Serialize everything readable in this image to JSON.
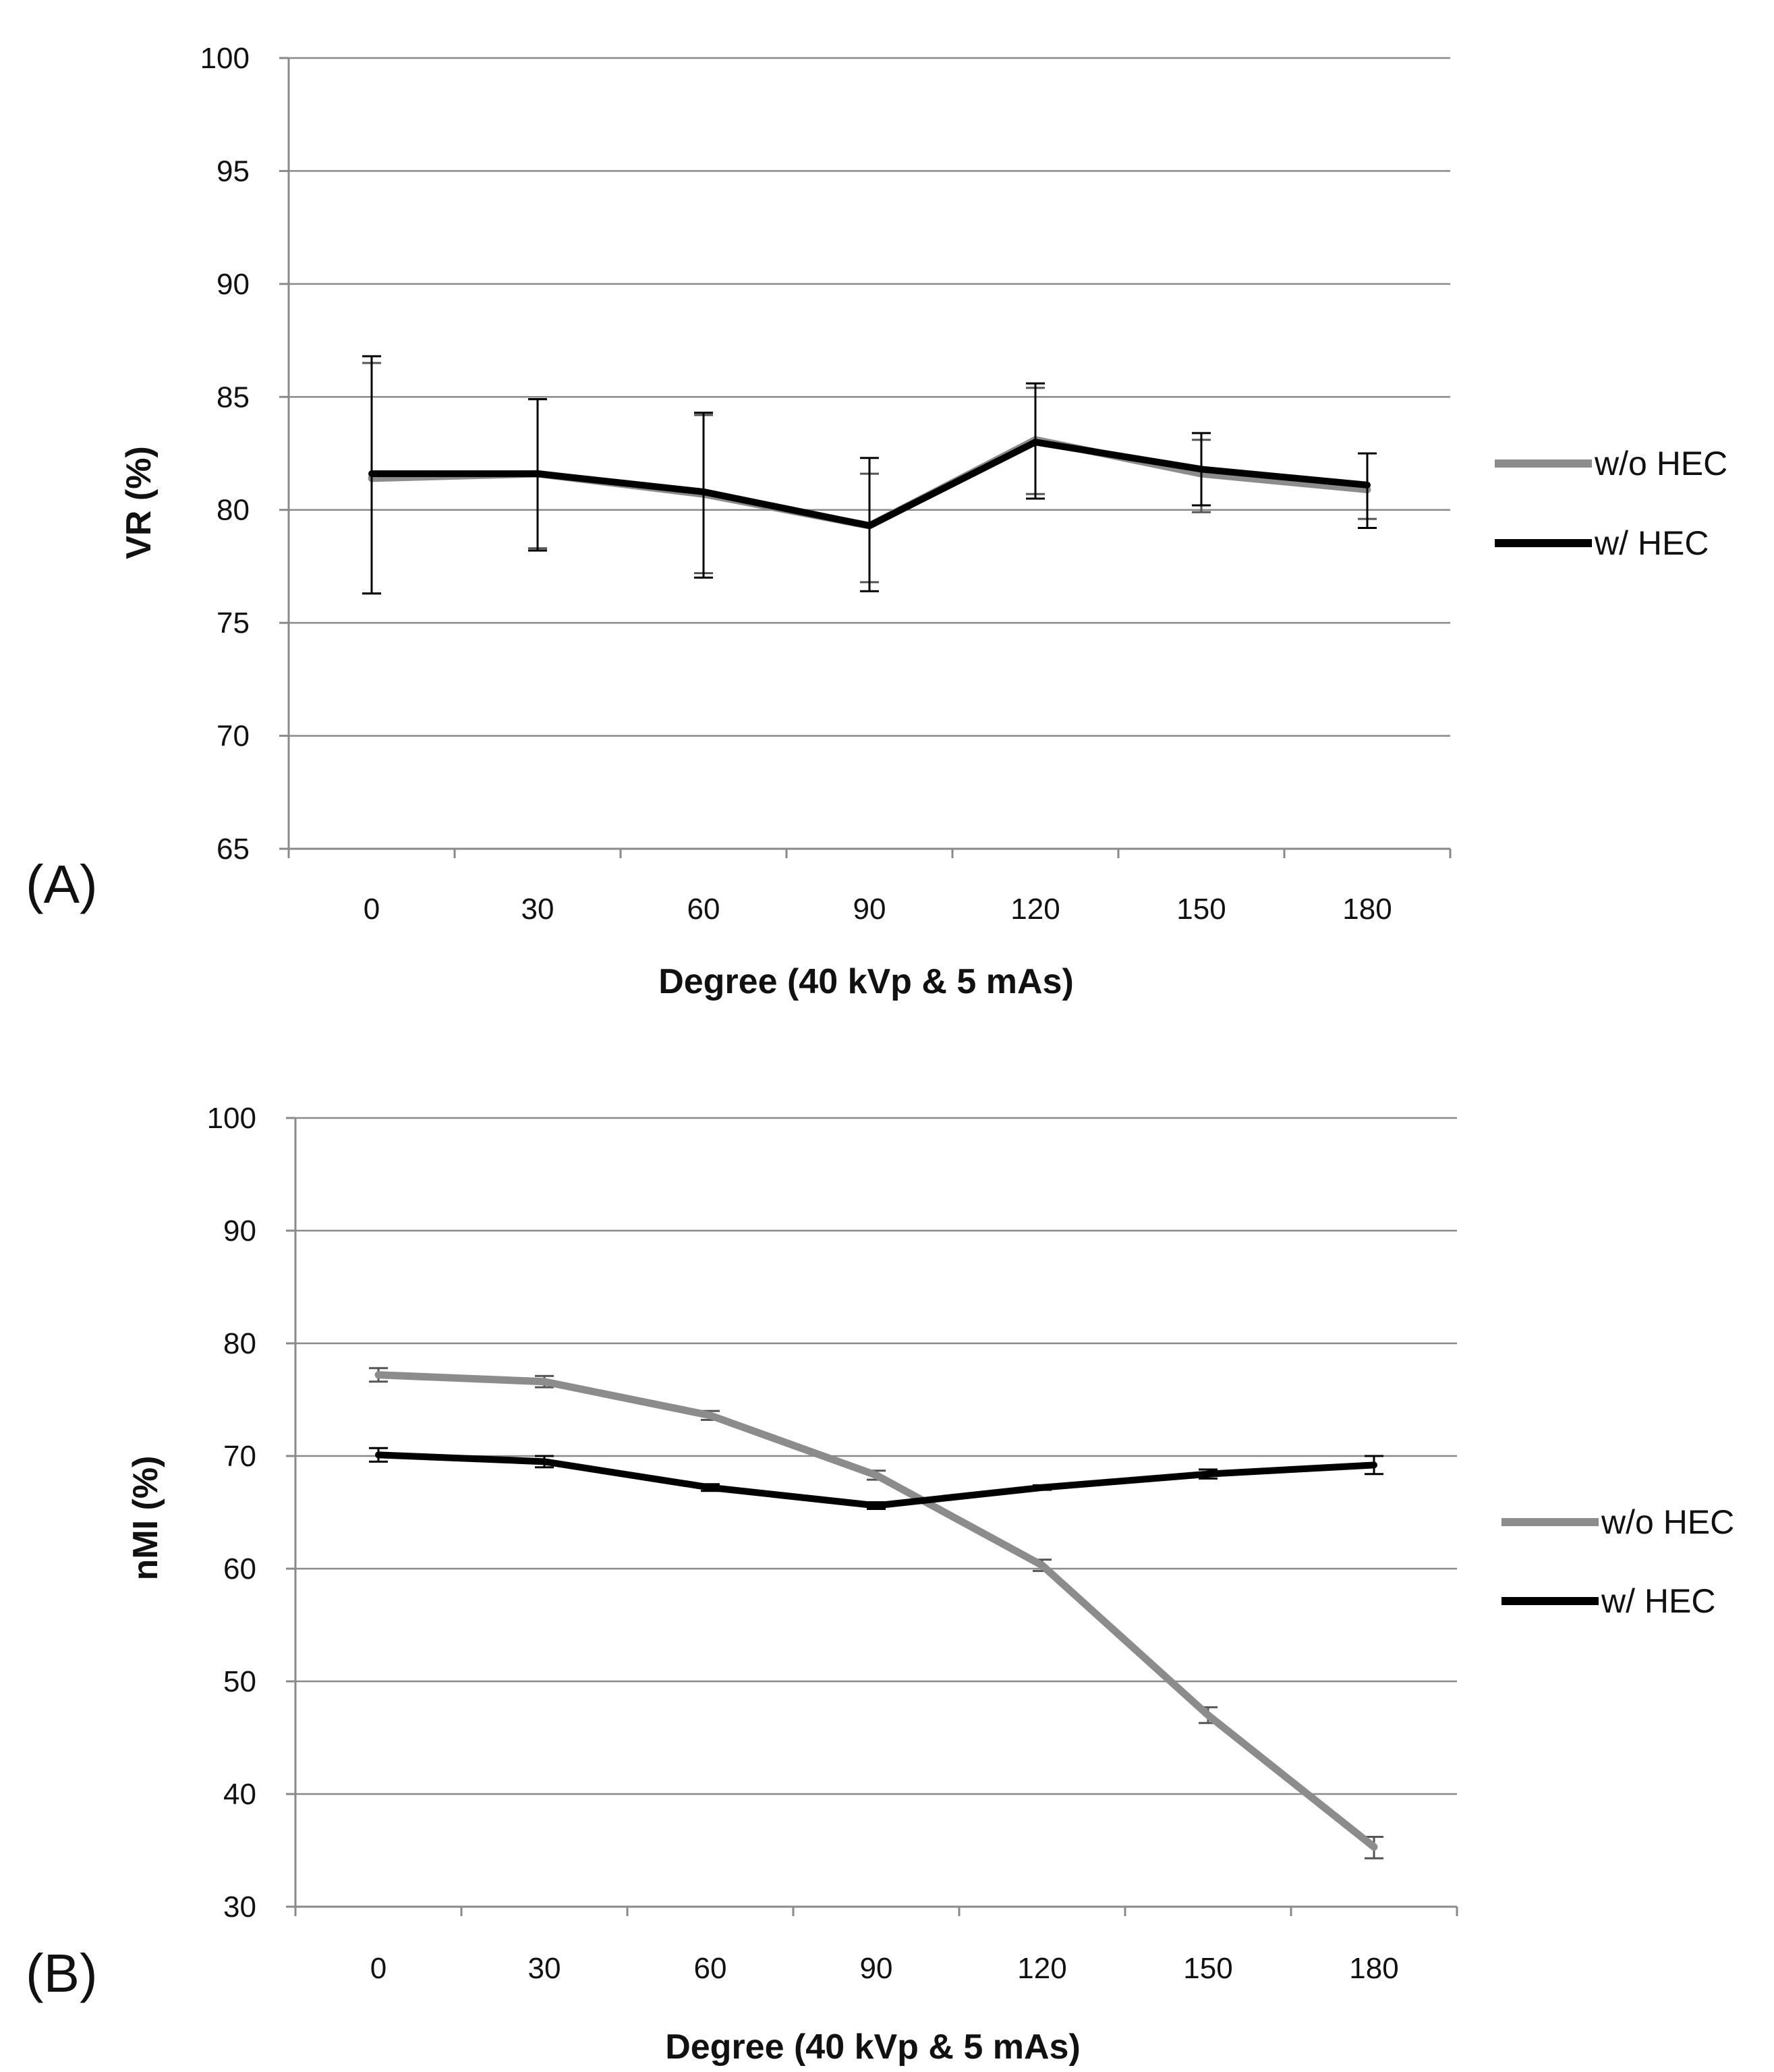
{
  "chart_data": [
    {
      "panel_label": "(A)",
      "type": "line",
      "title": "",
      "xlabel": "Degree (40 kVp & 5 mAs)",
      "ylabel": "VR (%)",
      "categories": [
        "0",
        "30",
        "60",
        "90",
        "120",
        "150",
        "180"
      ],
      "ylim": [
        65,
        100
      ],
      "yticks": [
        "65",
        "70",
        "75",
        "80",
        "85",
        "90",
        "95",
        "100"
      ],
      "grid": true,
      "legend": "right",
      "series": [
        {
          "name": "w/o HEC",
          "color": "#8c8c8c",
          "values": [
            81.4,
            81.6,
            80.7,
            79.3,
            83.1,
            81.6,
            80.9
          ],
          "err_low": [
            76.3,
            78.3,
            77.2,
            76.8,
            80.7,
            79.9,
            79.6
          ],
          "err_high": [
            86.5,
            84.9,
            84.2,
            81.6,
            85.4,
            83.1,
            82.5
          ]
        },
        {
          "name": "w/ HEC",
          "color": "#000000",
          "values": [
            81.6,
            81.6,
            80.8,
            79.3,
            83.0,
            81.8,
            81.1
          ],
          "err_low": [
            76.3,
            78.2,
            77.0,
            76.4,
            80.5,
            80.2,
            79.2
          ],
          "err_high": [
            86.8,
            84.9,
            84.3,
            82.3,
            85.6,
            83.4,
            82.5
          ]
        }
      ]
    },
    {
      "panel_label": "(B)",
      "type": "line",
      "title": "",
      "xlabel": "Degree (40 kVp & 5 mAs)",
      "ylabel": "nMI (%)",
      "categories": [
        "0",
        "30",
        "60",
        "90",
        "120",
        "150",
        "180"
      ],
      "ylim": [
        30,
        100
      ],
      "yticks": [
        "30",
        "40",
        "50",
        "60",
        "70",
        "80",
        "90",
        "100"
      ],
      "grid": true,
      "legend": "right",
      "series": [
        {
          "name": "w/o HEC",
          "color": "#8c8c8c",
          "values": [
            77.2,
            76.6,
            73.6,
            68.3,
            60.3,
            47.0,
            35.3
          ],
          "err_low": [
            76.6,
            76.1,
            73.2,
            67.9,
            59.8,
            46.3,
            34.3
          ],
          "err_high": [
            77.8,
            77.1,
            74.0,
            68.7,
            60.8,
            47.7,
            36.2
          ]
        },
        {
          "name": "w/ HEC",
          "color": "#000000",
          "values": [
            70.1,
            69.5,
            67.2,
            65.6,
            67.2,
            68.4,
            69.2
          ],
          "err_low": [
            69.5,
            69.0,
            66.9,
            65.3,
            67.0,
            68.0,
            68.4
          ],
          "err_high": [
            70.7,
            70.0,
            67.5,
            65.9,
            67.4,
            68.8,
            70.0
          ]
        }
      ]
    }
  ]
}
